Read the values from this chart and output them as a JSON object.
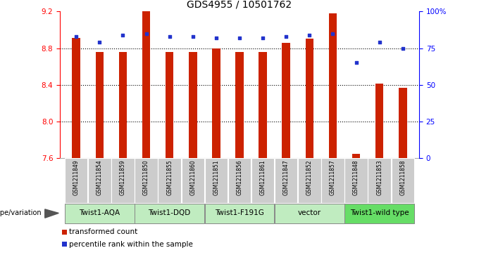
{
  "title": "GDS4955 / 10501762",
  "samples": [
    "GSM1211849",
    "GSM1211854",
    "GSM1211859",
    "GSM1211850",
    "GSM1211855",
    "GSM1211860",
    "GSM1211851",
    "GSM1211856",
    "GSM1211861",
    "GSM1211847",
    "GSM1211852",
    "GSM1211857",
    "GSM1211848",
    "GSM1211853",
    "GSM1211858"
  ],
  "transformed_count": [
    8.91,
    8.76,
    8.76,
    9.2,
    8.76,
    8.76,
    8.8,
    8.76,
    8.76,
    8.86,
    8.9,
    9.18,
    7.65,
    8.41,
    8.37
  ],
  "percentile_rank": [
    83,
    79,
    84,
    85,
    83,
    83,
    82,
    82,
    82,
    83,
    84,
    85,
    65,
    79,
    75
  ],
  "ylim_left": [
    7.6,
    9.2
  ],
  "ylim_right": [
    0,
    100
  ],
  "yticks_left": [
    7.6,
    8.0,
    8.4,
    8.8,
    9.2
  ],
  "yticks_right": [
    0,
    25,
    50,
    75,
    100
  ],
  "ytick_labels_right": [
    "0",
    "25",
    "50",
    "75",
    "100%"
  ],
  "groups": [
    {
      "label": "Twist1-AQA",
      "indices": [
        0,
        1,
        2
      ],
      "color": "#c0ecc0"
    },
    {
      "label": "Twist1-DQD",
      "indices": [
        3,
        4,
        5
      ],
      "color": "#c0ecc0"
    },
    {
      "label": "Twist1-F191G",
      "indices": [
        6,
        7,
        8
      ],
      "color": "#c0ecc0"
    },
    {
      "label": "vector",
      "indices": [
        9,
        10,
        11
      ],
      "color": "#c0ecc0"
    },
    {
      "label": "Twist1-wild type",
      "indices": [
        12,
        13,
        14
      ],
      "color": "#66dd66"
    }
  ],
  "bar_color": "#cc2200",
  "dot_color": "#2233cc",
  "bar_width": 0.35,
  "genotype_label": "genotype/variation",
  "legend_items": [
    {
      "label": "transformed count",
      "color": "#cc2200"
    },
    {
      "label": "percentile rank within the sample",
      "color": "#2233cc"
    }
  ],
  "tick_bg_color": "#cccccc",
  "group_border_color": "#888888",
  "sample_label_fontsize": 5.5,
  "group_label_fontsize": 7.5,
  "legend_fontsize": 7.5
}
